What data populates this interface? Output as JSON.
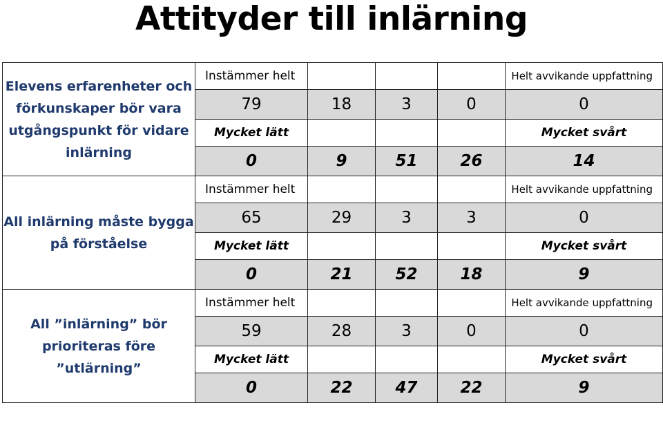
{
  "title": "Attityder till inlärning",
  "blocks": [
    {
      "statement": "Elevens erfarenheter och förkunskaper bör vara utgångspunkt för vidare inlärning",
      "scale1_left": "Instämmer helt",
      "scale1_right": "Helt avvikande uppfattning",
      "values1": [
        "79",
        "18",
        "3",
        "0",
        "0"
      ],
      "scale2_left": "Mycket lätt",
      "scale2_right": "Mycket svårt",
      "values2": [
        "0",
        "9",
        "51",
        "26",
        "14"
      ]
    },
    {
      "statement": "All inlärning måste bygga på förståelse",
      "scale1_left": "Instämmer helt",
      "scale1_right": "Helt avvikande uppfattning",
      "values1": [
        "65",
        "29",
        "3",
        "3",
        "0"
      ],
      "scale2_left": "Mycket lätt",
      "scale2_right": "Mycket svårt",
      "values2": [
        "0",
        "21",
        "52",
        "18",
        "9"
      ]
    },
    {
      "statement": "All ”inlärning” bör prioriteras före ”utlärning”",
      "scale1_left": "Instämmer helt",
      "scale1_right": "Helt avvikande uppfattning",
      "values1": [
        "59",
        "28",
        "3",
        "0",
        "0"
      ],
      "scale2_left": "Mycket lätt",
      "scale2_right": "Mycket svårt",
      "values2": [
        "0",
        "22",
        "47",
        "22",
        "9"
      ]
    }
  ]
}
